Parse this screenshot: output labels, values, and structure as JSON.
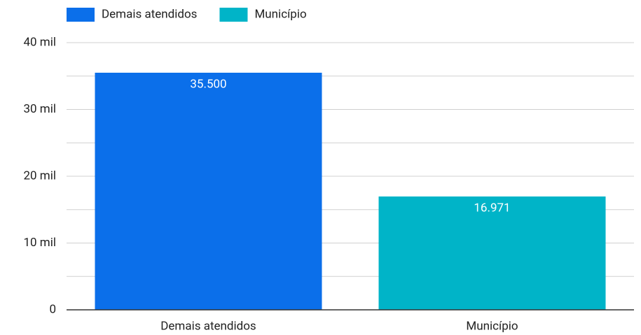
{
  "chart_data": {
    "type": "bar",
    "categories": [
      "Demais atendidos",
      "Município"
    ],
    "values": [
      35500,
      16971
    ],
    "value_labels": [
      "35.500",
      "16.971"
    ],
    "colors": [
      "#0b6fea",
      "#00b4c8"
    ],
    "ylim": [
      0,
      40000
    ],
    "yticks": [
      {
        "value": 0,
        "label": "0"
      },
      {
        "value": 10000,
        "label": "10 mil"
      },
      {
        "value": 20000,
        "label": "20 mil"
      },
      {
        "value": 30000,
        "label": "30 mil"
      },
      {
        "value": 40000,
        "label": "40 mil"
      }
    ],
    "minor_yticks": [
      5000,
      15000,
      25000,
      35000
    ],
    "grid": true,
    "legend": "top-left"
  }
}
